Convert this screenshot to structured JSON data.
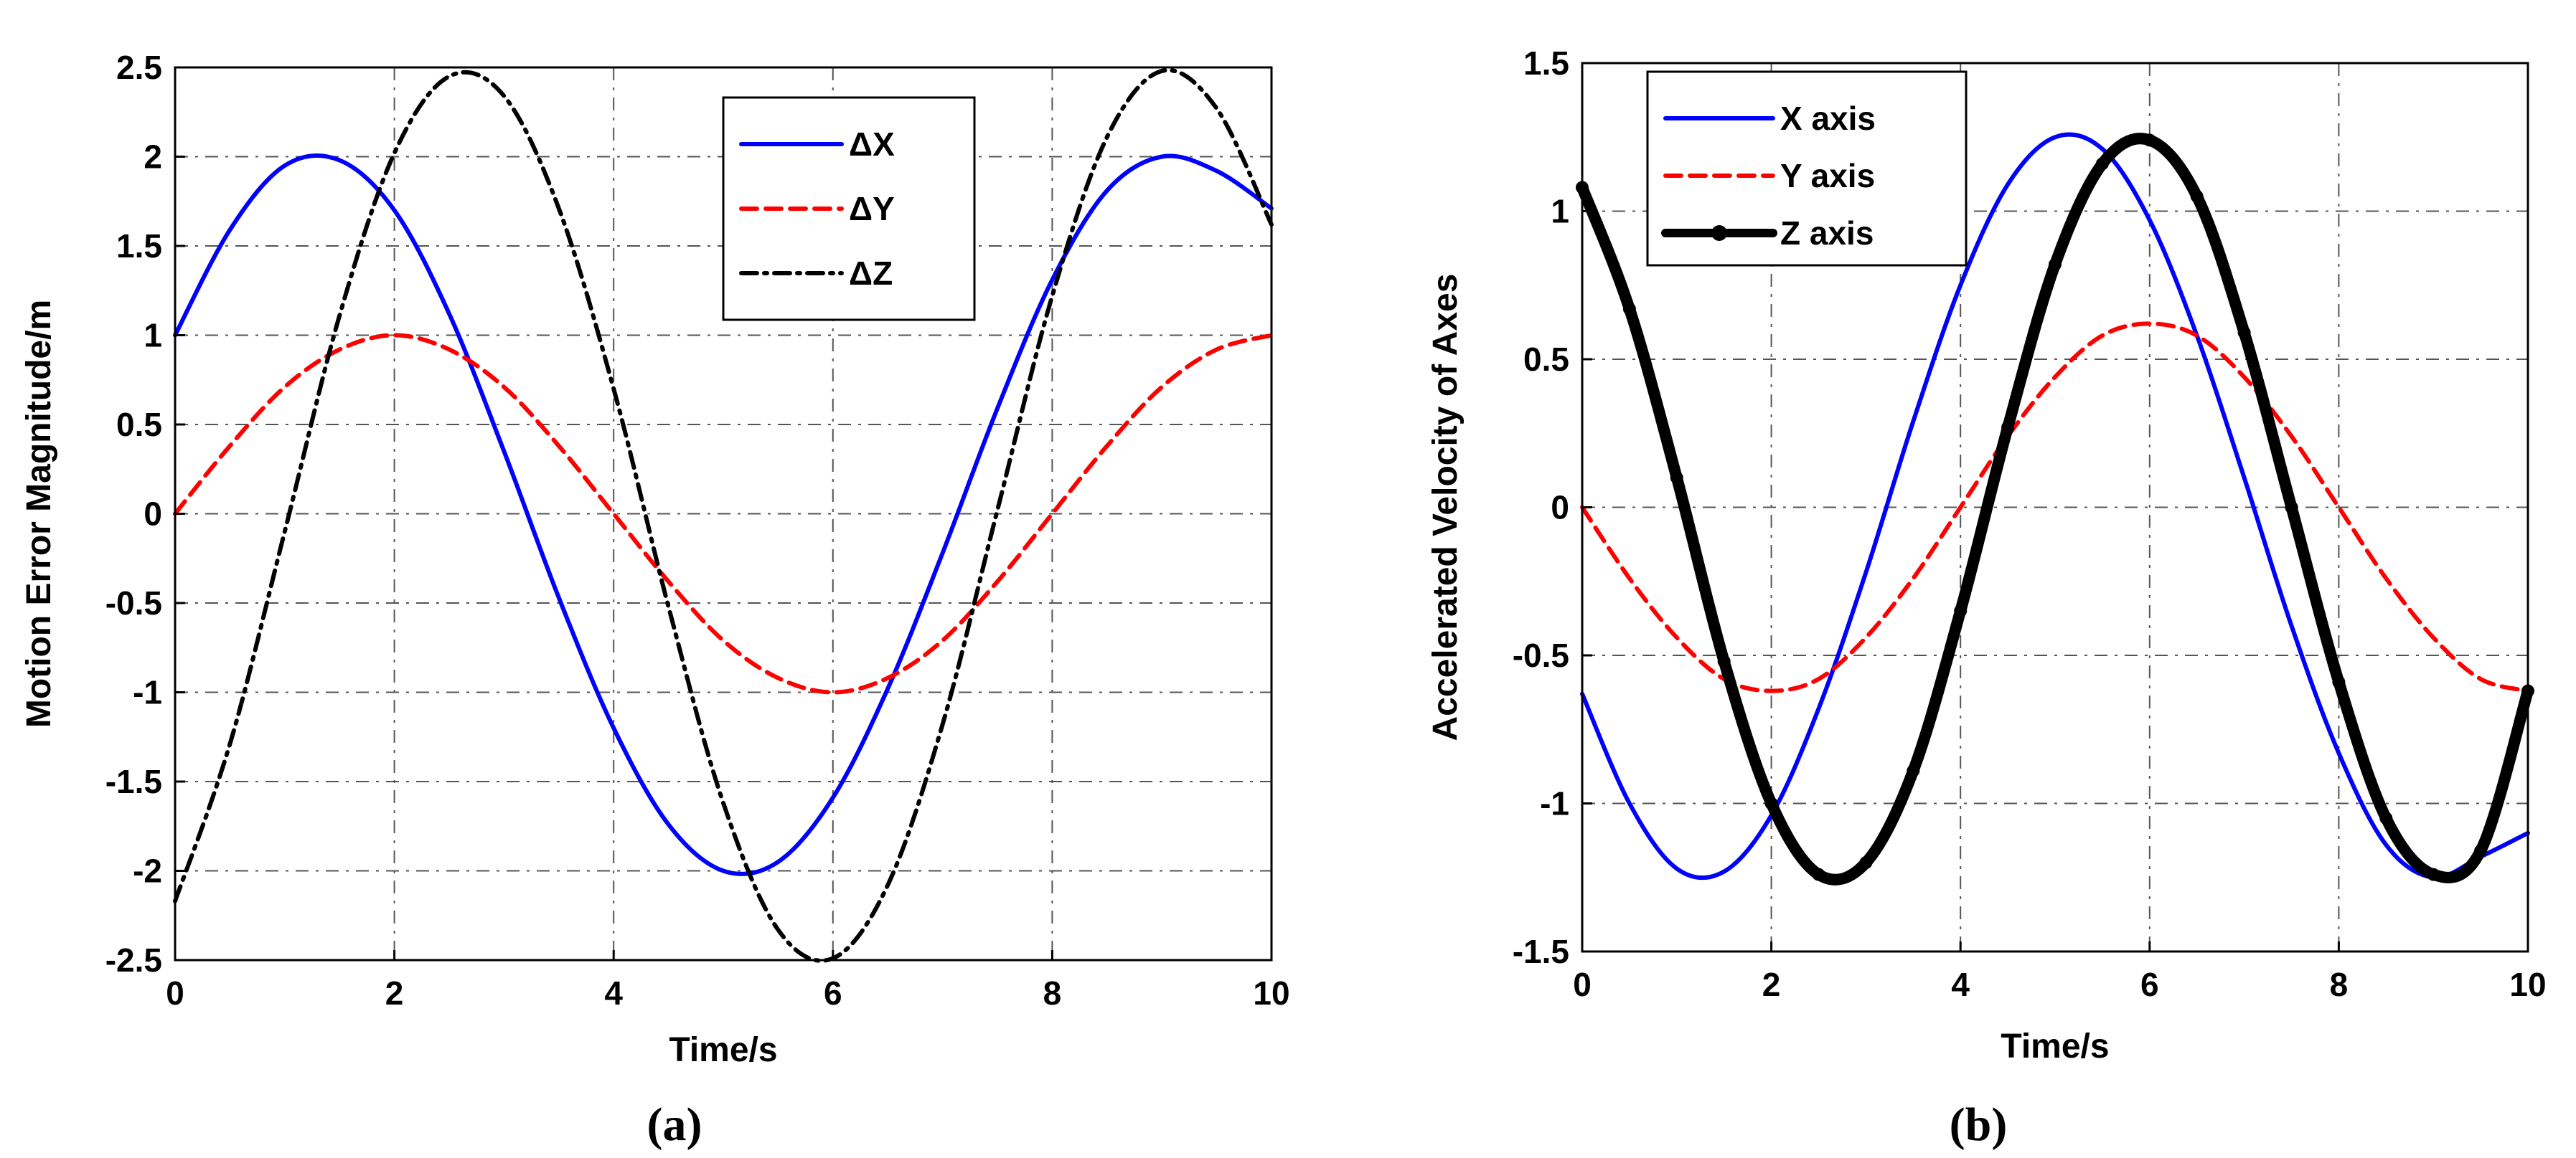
{
  "chart_data": [
    {
      "type": "line",
      "caption": "(a)",
      "xlabel": "Time/s",
      "ylabel": "Motion Error Magnitude/m",
      "xlim": [
        0,
        10
      ],
      "ylim": [
        -2.5,
        2.5
      ],
      "xticks": [
        "0",
        "2",
        "4",
        "6",
        "8",
        "10"
      ],
      "yticks": [
        "2.5",
        "2",
        "1.5",
        "1",
        "0.5",
        "0",
        "-0.5",
        "-1",
        "-1.5",
        "-2",
        "-2.5"
      ],
      "grid": true,
      "legend_position": "top-right",
      "x": [
        0,
        0.5,
        1,
        1.5,
        2,
        2.5,
        3,
        3.5,
        4,
        4.5,
        5,
        5.5,
        6,
        6.5,
        7,
        7.5,
        8,
        8.5,
        9,
        9.5,
        10
      ],
      "series": [
        {
          "name": "ΔX",
          "color": "#0000ff",
          "style": "solid",
          "values": [
            1.0,
            1.59,
            1.95,
            1.98,
            1.7,
            1.12,
            0.35,
            -0.47,
            -1.2,
            -1.74,
            -2.0,
            -1.95,
            -1.59,
            -0.98,
            -0.22,
            0.59,
            1.31,
            1.81,
            2.0,
            1.92,
            1.71
          ]
        },
        {
          "name": "ΔY",
          "color": "#ff0000",
          "style": "dashed",
          "values": [
            0.0,
            0.38,
            0.71,
            0.92,
            1.0,
            0.92,
            0.71,
            0.38,
            0.0,
            -0.38,
            -0.71,
            -0.92,
            -1.0,
            -0.92,
            -0.71,
            -0.38,
            0.0,
            0.38,
            0.71,
            0.92,
            1.0
          ]
        },
        {
          "name": "ΔZ",
          "color": "#000000",
          "style": "dashdot",
          "values": [
            -2.17,
            -1.29,
            -0.1,
            1.11,
            2.02,
            2.45,
            2.34,
            1.71,
            0.7,
            -0.52,
            -1.62,
            -2.33,
            -2.49,
            -2.08,
            -1.18,
            0.02,
            1.22,
            2.11,
            2.48,
            2.27,
            1.62
          ]
        }
      ]
    },
    {
      "type": "line",
      "caption": "(b)",
      "xlabel": "Time/s",
      "ylabel": "Accelerated Velocity of Axes",
      "xlim": [
        0,
        10
      ],
      "ylim": [
        -1.5,
        1.5
      ],
      "xticks": [
        "0",
        "2",
        "4",
        "6",
        "8",
        "10"
      ],
      "yticks": [
        "1.5",
        "1",
        "0.5",
        "0",
        "-0.5",
        "-1",
        "-1.5"
      ],
      "grid": true,
      "legend_position": "top-left",
      "x": [
        0,
        0.5,
        1,
        1.5,
        2,
        2.5,
        3,
        3.5,
        4,
        4.5,
        5,
        5.5,
        6,
        6.5,
        7,
        7.5,
        8,
        8.5,
        9,
        9.5,
        10
      ],
      "series": [
        {
          "name": "X axis",
          "color": "#0000ff",
          "style": "solid",
          "values": [
            -0.63,
            -1.0,
            -1.22,
            -1.23,
            -1.04,
            -0.68,
            -0.22,
            0.29,
            0.75,
            1.09,
            1.25,
            1.21,
            0.97,
            0.58,
            0.1,
            -0.4,
            -0.83,
            -1.14,
            -1.25,
            -1.18,
            -1.1
          ]
        },
        {
          "name": "Y axis",
          "color": "#ff0000",
          "style": "dashed",
          "values": [
            0.0,
            -0.24,
            -0.44,
            -0.58,
            -0.62,
            -0.58,
            -0.44,
            -0.24,
            0.0,
            0.24,
            0.44,
            0.58,
            0.62,
            0.58,
            0.44,
            0.24,
            0.0,
            -0.24,
            -0.44,
            -0.58,
            -0.62
          ]
        },
        {
          "name": "Z axis",
          "color": "#000000",
          "style": "thick-dots",
          "values": [
            1.08,
            0.67,
            0.1,
            -0.52,
            -1.0,
            -1.24,
            -1.2,
            -0.89,
            -0.35,
            0.27,
            0.82,
            1.16,
            1.24,
            1.05,
            0.59,
            0.0,
            -0.59,
            -1.05,
            -1.24,
            -1.16,
            -0.62
          ]
        }
      ]
    }
  ]
}
